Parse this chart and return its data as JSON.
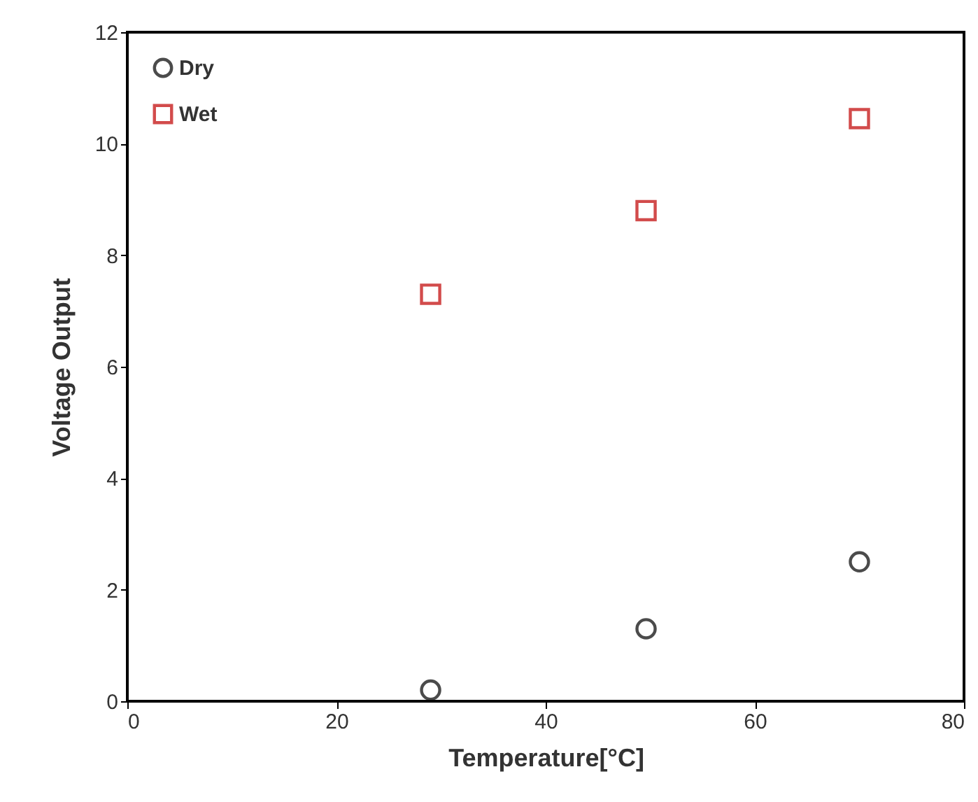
{
  "chart_data": {
    "type": "scatter",
    "xlabel": "Temperature[°C]",
    "ylabel": "Voltage Output",
    "xlim": [
      0,
      80
    ],
    "xticks": [
      0,
      20,
      40,
      60,
      80
    ],
    "ylim": [
      0,
      12
    ],
    "yticks": [
      0,
      2,
      4,
      6,
      8,
      10,
      12
    ],
    "grid": false,
    "legend": "top left",
    "series": [
      {
        "name": "Dry",
        "color": "#000000",
        "marker": "circle",
        "x": [
          29,
          49.6,
          70
        ],
        "values": [
          0.2,
          1.3,
          2.5
        ]
      },
      {
        "name": "Wet",
        "color": "#c00000",
        "marker": "square",
        "x": [
          29,
          49.6,
          70
        ],
        "values": [
          7.3,
          8.8,
          10.45
        ]
      }
    ]
  }
}
